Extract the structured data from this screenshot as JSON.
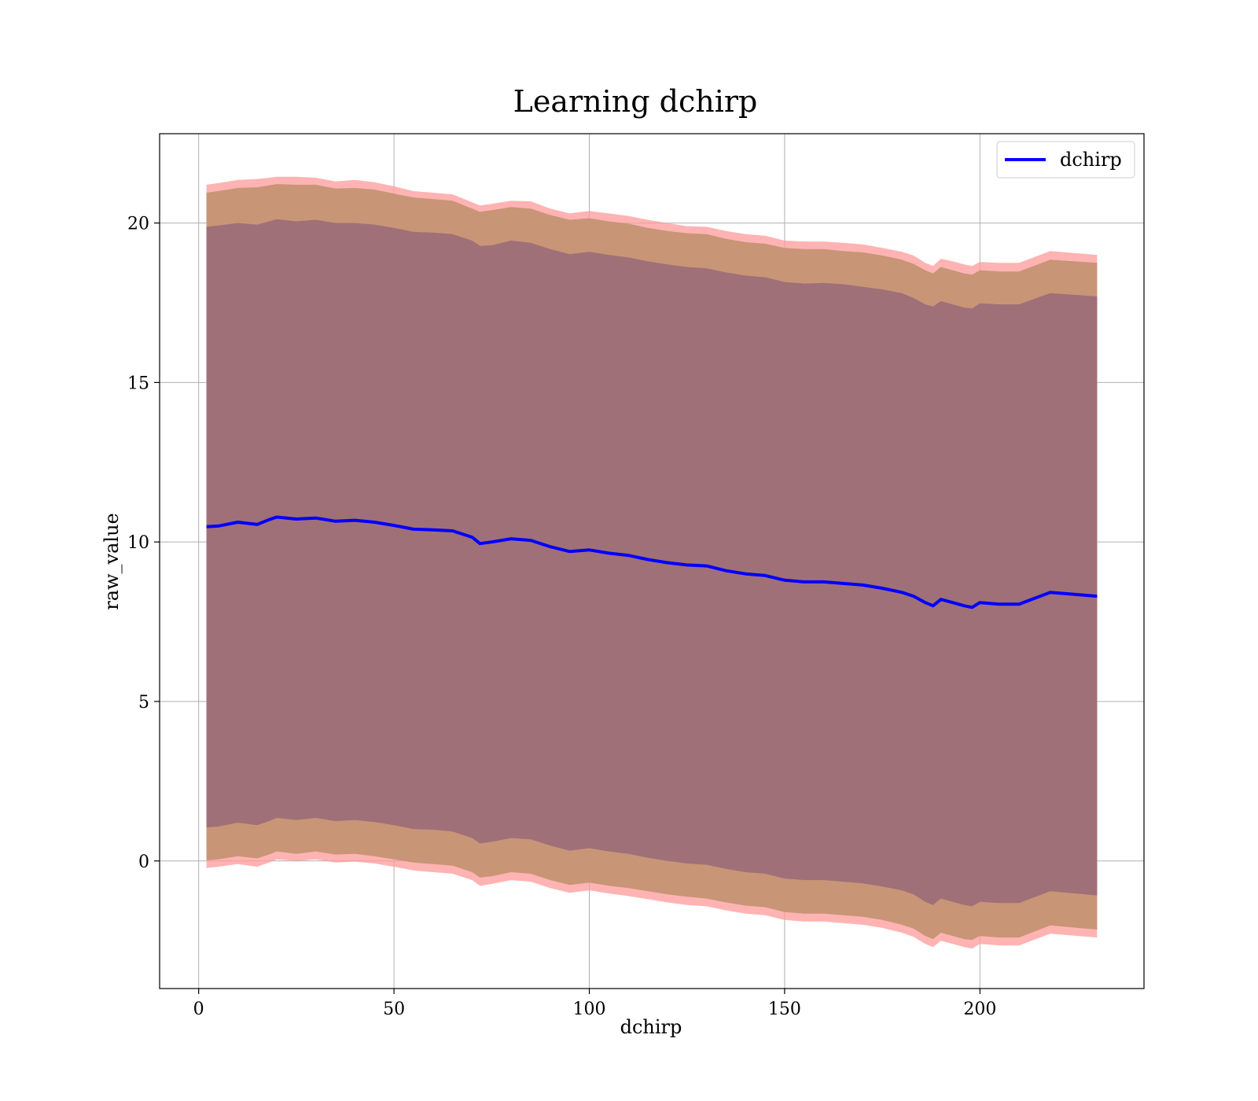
{
  "chart_data": {
    "type": "line",
    "title": "Learning dchirp",
    "xlabel": "dchirp",
    "ylabel": "raw_value",
    "xlim": [
      -10,
      242
    ],
    "ylim": [
      -4,
      22.8
    ],
    "xticks": [
      0,
      50,
      100,
      150,
      200
    ],
    "yticks": [
      0,
      5,
      10,
      15,
      20
    ],
    "grid": true,
    "legend": {
      "position": "top-right",
      "entries": [
        "dchirp"
      ]
    },
    "colors": {
      "line": "#0000ff",
      "band_outer": "#ff9a9a",
      "band_middle": "#c89577",
      "band_inner": "#a07078",
      "grid": "#b0b0b0"
    },
    "x": [
      2,
      5,
      10,
      15,
      18,
      20,
      25,
      30,
      35,
      40,
      45,
      50,
      55,
      60,
      65,
      70,
      72,
      75,
      80,
      85,
      90,
      95,
      100,
      105,
      110,
      115,
      120,
      125,
      130,
      135,
      140,
      145,
      150,
      155,
      160,
      165,
      170,
      175,
      180,
      183,
      186,
      188,
      190,
      193,
      196,
      198,
      200,
      205,
      210,
      218,
      230
    ],
    "series": [
      {
        "name": "dchirp",
        "values": [
          10.48,
          10.5,
          10.62,
          10.55,
          10.7,
          10.78,
          10.72,
          10.75,
          10.65,
          10.68,
          10.62,
          10.52,
          10.4,
          10.38,
          10.35,
          10.15,
          9.95,
          10.0,
          10.1,
          10.05,
          9.85,
          9.7,
          9.75,
          9.65,
          9.58,
          9.45,
          9.35,
          9.28,
          9.25,
          9.1,
          9.0,
          8.95,
          8.8,
          8.75,
          8.75,
          8.7,
          8.65,
          8.55,
          8.42,
          8.3,
          8.1,
          8.0,
          8.2,
          8.1,
          8.0,
          7.95,
          8.1,
          8.05,
          8.05,
          8.42,
          8.3
        ]
      }
    ],
    "bands": [
      {
        "upper": [
          21.2,
          21.25,
          21.35,
          21.38,
          21.42,
          21.45,
          21.45,
          21.42,
          21.3,
          21.35,
          21.28,
          21.15,
          21.0,
          20.95,
          20.9,
          20.65,
          20.55,
          20.6,
          20.7,
          20.68,
          20.45,
          20.3,
          20.38,
          20.3,
          20.22,
          20.1,
          20.0,
          19.9,
          19.88,
          19.75,
          19.65,
          19.6,
          19.45,
          19.42,
          19.42,
          19.38,
          19.33,
          19.22,
          19.1,
          18.98,
          18.75,
          18.65,
          18.88,
          18.8,
          18.7,
          18.65,
          18.78,
          18.75,
          18.75,
          19.12,
          19.0
        ],
        "lower": [
          -0.22,
          -0.18,
          -0.1,
          -0.18,
          -0.05,
          0.05,
          0.0,
          0.05,
          -0.05,
          -0.02,
          -0.08,
          -0.18,
          -0.3,
          -0.35,
          -0.4,
          -0.6,
          -0.78,
          -0.72,
          -0.6,
          -0.65,
          -0.85,
          -1.0,
          -0.92,
          -1.02,
          -1.1,
          -1.2,
          -1.3,
          -1.38,
          -1.42,
          -1.55,
          -1.65,
          -1.7,
          -1.85,
          -1.9,
          -1.9,
          -1.95,
          -2.0,
          -2.1,
          -2.25,
          -2.38,
          -2.6,
          -2.7,
          -2.5,
          -2.6,
          -2.7,
          -2.75,
          -2.6,
          -2.65,
          -2.65,
          -2.28,
          -2.4
        ]
      },
      {
        "upper": [
          20.95,
          21.0,
          21.1,
          21.12,
          21.18,
          21.22,
          21.2,
          21.2,
          21.08,
          21.1,
          21.05,
          20.92,
          20.8,
          20.75,
          20.7,
          20.45,
          20.35,
          20.4,
          20.5,
          20.45,
          20.25,
          20.1,
          20.15,
          20.05,
          19.98,
          19.85,
          19.75,
          19.68,
          19.65,
          19.5,
          19.4,
          19.35,
          19.22,
          19.18,
          19.18,
          19.12,
          19.08,
          18.98,
          18.85,
          18.72,
          18.52,
          18.42,
          18.62,
          18.52,
          18.42,
          18.38,
          18.52,
          18.48,
          18.48,
          18.85,
          18.75
        ],
        "lower": [
          0.02,
          0.05,
          0.15,
          0.08,
          0.2,
          0.3,
          0.22,
          0.3,
          0.2,
          0.22,
          0.15,
          0.05,
          -0.05,
          -0.1,
          -0.15,
          -0.35,
          -0.52,
          -0.48,
          -0.35,
          -0.4,
          -0.6,
          -0.75,
          -0.68,
          -0.78,
          -0.85,
          -0.95,
          -1.05,
          -1.12,
          -1.18,
          -1.3,
          -1.4,
          -1.45,
          -1.6,
          -1.65,
          -1.65,
          -1.7,
          -1.75,
          -1.85,
          -2.0,
          -2.12,
          -2.35,
          -2.45,
          -2.25,
          -2.35,
          -2.45,
          -2.48,
          -2.35,
          -2.4,
          -2.4,
          -2.02,
          -2.15
        ]
      },
      {
        "upper": [
          19.88,
          19.92,
          20.0,
          19.95,
          20.05,
          20.12,
          20.05,
          20.1,
          20.0,
          20.0,
          19.95,
          19.85,
          19.72,
          19.7,
          19.65,
          19.45,
          19.28,
          19.3,
          19.45,
          19.38,
          19.18,
          19.02,
          19.1,
          19.0,
          18.92,
          18.8,
          18.7,
          18.62,
          18.58,
          18.45,
          18.35,
          18.3,
          18.15,
          18.1,
          18.12,
          18.08,
          18.0,
          17.92,
          17.8,
          17.65,
          17.45,
          17.38,
          17.55,
          17.45,
          17.35,
          17.32,
          17.48,
          17.45,
          17.45,
          17.8,
          17.7
        ],
        "lower": [
          1.05,
          1.08,
          1.2,
          1.12,
          1.25,
          1.35,
          1.28,
          1.35,
          1.25,
          1.28,
          1.22,
          1.12,
          1.0,
          0.98,
          0.92,
          0.72,
          0.55,
          0.6,
          0.72,
          0.68,
          0.48,
          0.32,
          0.4,
          0.3,
          0.22,
          0.1,
          0.0,
          -0.08,
          -0.12,
          -0.25,
          -0.35,
          -0.4,
          -0.55,
          -0.6,
          -0.6,
          -0.65,
          -0.7,
          -0.8,
          -0.92,
          -1.05,
          -1.28,
          -1.38,
          -1.18,
          -1.28,
          -1.38,
          -1.42,
          -1.28,
          -1.32,
          -1.32,
          -0.95,
          -1.08
        ]
      }
    ]
  }
}
